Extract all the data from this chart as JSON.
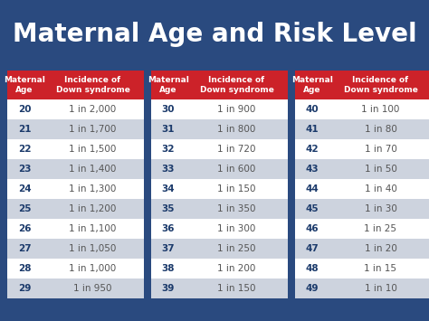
{
  "title": "Maternal Age and Risk Level",
  "title_color": "#FFFFFF",
  "background_color": "#2A4A7F",
  "header_bg": "#CC2229",
  "header_text_color": "#FFFFFF",
  "row_even_bg": "#FFFFFF",
  "row_odd_bg": "#CDD3DE",
  "age_text_color": "#1B3A6B",
  "incidence_text_color": "#555555",
  "columns": [
    [
      "Maternal\nAge",
      "Incidence of\nDown syndrome"
    ],
    [
      "Maternal\nAge",
      "Incidence of\nDown syndrome"
    ],
    [
      "Maternal\nAge",
      "Incidence of\nDown syndrome"
    ]
  ],
  "table1": [
    [
      "20",
      "1 in 2,000"
    ],
    [
      "21",
      "1 in 1,700"
    ],
    [
      "22",
      "1 in 1,500"
    ],
    [
      "23",
      "1 in 1,400"
    ],
    [
      "24",
      "1 in 1,300"
    ],
    [
      "25",
      "1 in 1,200"
    ],
    [
      "26",
      "1 in 1,100"
    ],
    [
      "27",
      "1 in 1,050"
    ],
    [
      "28",
      "1 in 1,000"
    ],
    [
      "29",
      "1 in 950"
    ]
  ],
  "table2": [
    [
      "30",
      "1 in 900"
    ],
    [
      "31",
      "1 in 800"
    ],
    [
      "32",
      "1 in 720"
    ],
    [
      "33",
      "1 in 600"
    ],
    [
      "34",
      "1 in 150"
    ],
    [
      "35",
      "1 in 350"
    ],
    [
      "36",
      "1 in 300"
    ],
    [
      "37",
      "1 in 250"
    ],
    [
      "38",
      "1 in 200"
    ],
    [
      "39",
      "1 in 150"
    ]
  ],
  "table3": [
    [
      "40",
      "1 in 100"
    ],
    [
      "41",
      "1 in 80"
    ],
    [
      "42",
      "1 in 70"
    ],
    [
      "43",
      "1 in 50"
    ],
    [
      "44",
      "1 in 40"
    ],
    [
      "45",
      "1 in 30"
    ],
    [
      "46",
      "1 in 25"
    ],
    [
      "47",
      "1 in 20"
    ],
    [
      "48",
      "1 in 15"
    ],
    [
      "49",
      "1 in 10"
    ]
  ],
  "title_fontsize": 20,
  "header_fontsize": 6.5,
  "data_fontsize": 7.5
}
